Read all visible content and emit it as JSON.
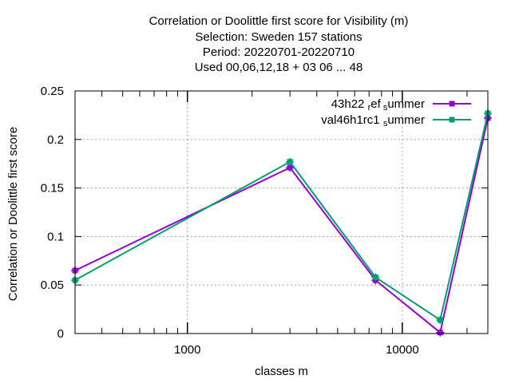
{
  "chart_data": {
    "type": "line",
    "title_lines": [
      "Correlation or Doolittle first score  for Visibility (m)",
      "Selection: Sweden    157 stations",
      "Period: 20220701-20220710",
      "Used  00,06,12,18  + 03 06 ... 48"
    ],
    "xlabel": "classes m",
    "ylabel": "Correlation or Doolittle first score",
    "xscale": "log",
    "xlim": [
      300,
      25000
    ],
    "ylim": [
      0,
      0.25
    ],
    "grid": true,
    "legend_position": "top-right",
    "x_ticks": [
      1000,
      10000
    ],
    "x_tick_labels": [
      "1000",
      "10000"
    ],
    "y_ticks": [
      0,
      0.05,
      0.1,
      0.15,
      0.2,
      0.25
    ],
    "y_tick_labels": [
      "0",
      "0.05",
      "0.1",
      "0.15",
      "0.2",
      "0.25"
    ],
    "series": [
      {
        "name": "43h22_ref_summer",
        "legend_parts": [
          "43h22 ",
          "r",
          "ef",
          "s",
          "ummer"
        ],
        "color": "#9400d3",
        "x": [
          300,
          3000,
          7500,
          15000,
          25000
        ],
        "y": [
          0.065,
          0.171,
          0.055,
          0.001,
          0.222
        ]
      },
      {
        "name": "val46h1rc1_summer",
        "legend_parts": [
          "val46h1rc1 ",
          "",
          "",
          "s",
          "ummer"
        ],
        "color": "#009e73",
        "x": [
          300,
          3000,
          7500,
          15000,
          25000
        ],
        "y": [
          0.055,
          0.177,
          0.058,
          0.014,
          0.227
        ]
      }
    ]
  }
}
